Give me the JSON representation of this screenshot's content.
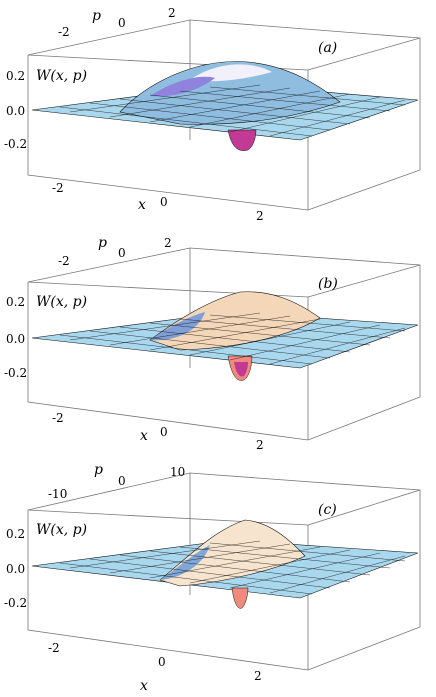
{
  "panels": [
    {
      "tag": "(a)",
      "w_label": "W(x, p)",
      "z_ticks": [
        "0.2",
        "0.0",
        "-0.2"
      ],
      "p_label": "p",
      "p_ticks": [
        "-2",
        "0",
        "2"
      ],
      "x_label": "x",
      "x_ticks": [
        "-2",
        "0",
        "2"
      ],
      "x_range": [
        -3,
        3
      ],
      "p_range": [
        -3,
        3
      ],
      "z_range": [
        -0.3,
        0.3
      ],
      "features": "ring of positive values around a negative dip at the origin"
    },
    {
      "tag": "(b)",
      "w_label": "W(x, p)",
      "z_ticks": [
        "0.2",
        "0.0",
        "-0.2"
      ],
      "p_label": "p",
      "p_ticks": [
        "-2",
        "0",
        "2"
      ],
      "x_label": "x",
      "x_ticks": [
        "-2",
        "0",
        "2"
      ],
      "x_range": [
        -3,
        3
      ],
      "p_range": [
        -3,
        3
      ],
      "z_range": [
        -0.3,
        0.3
      ],
      "features": "ridge elongated along p with a negative dip at the origin"
    },
    {
      "tag": "(c)",
      "w_label": "W(x, p)",
      "z_ticks": [
        "0.2",
        "0.0",
        "-0.2"
      ],
      "p_label": "p",
      "p_ticks": [
        "-10",
        "0",
        "10"
      ],
      "x_label": "x",
      "x_ticks": [
        "-2",
        "0",
        "2"
      ],
      "x_range": [
        -3,
        3
      ],
      "p_range": [
        -12,
        12
      ],
      "z_range": [
        -0.3,
        0.3
      ],
      "features": "strongly elongated ridge along p with a narrow negative dip at the origin"
    }
  ],
  "colors": {
    "surface": "#a9d8ee",
    "surface_dark": "#5f9fc4",
    "peak_light": "#f3f3fb",
    "peak_violet": "#9b8de6",
    "peak_warm": "#f4d6b8",
    "dip": "#c23a94",
    "dip_light": "#f08a7c",
    "mesh": "#111111"
  }
}
